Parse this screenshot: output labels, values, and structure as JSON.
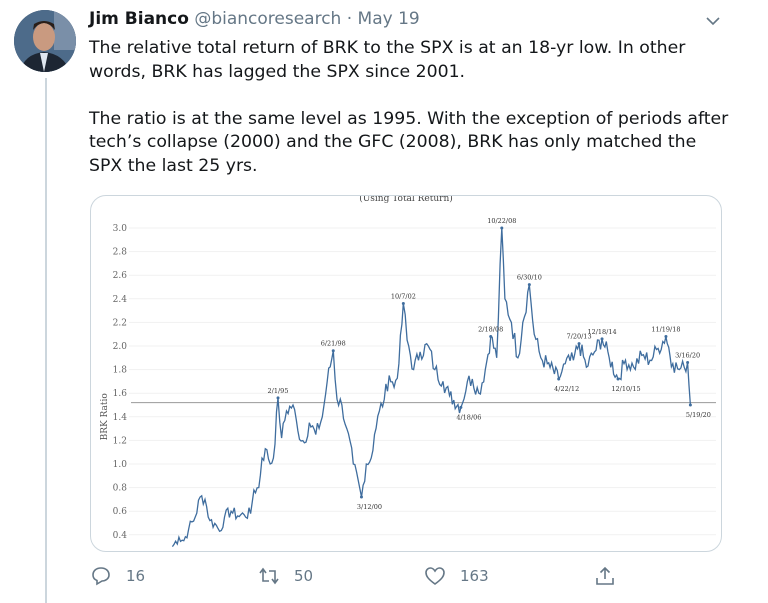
{
  "tweet": {
    "author_name": "Jim Bianco",
    "handle": "@biancoresearch",
    "separator": "·",
    "date": "May 19",
    "paragraphs": [
      "The relative total return of BRK to the SPX is at an 18-yr low. In other words, BRK has lagged the SPX since 2001.",
      "The ratio is at the same level as 1995. With the exception of periods after tech’s collapse (2000) and the GFC (2008), BRK has only matched the SPX the last 25 yrs."
    ],
    "actions": {
      "replies": "16",
      "retweets": "50",
      "likes": "163"
    }
  },
  "colors": {
    "line": "#3f6d9e",
    "accent": "#1da1f2",
    "muted": "#657786"
  },
  "chart_data": {
    "type": "line",
    "title": "(Using Total Return)",
    "ylabel": "BRK Ratio",
    "ylim": [
      0.3,
      3.1
    ],
    "yticks": [
      "0.4",
      "0.6",
      "0.8",
      "1.0",
      "1.2",
      "1.4",
      "1.6",
      "1.8",
      "2.0",
      "2.2",
      "2.4",
      "2.6",
      "2.8",
      "3.0"
    ],
    "grid": true,
    "reference_line": 1.52,
    "series": [
      {
        "points": [
          [
            1988.6,
            0.3
          ],
          [
            1989.0,
            0.38
          ],
          [
            1989.3,
            0.35
          ],
          [
            1989.6,
            0.45
          ],
          [
            1990.0,
            0.55
          ],
          [
            1990.3,
            0.72
          ],
          [
            1990.6,
            0.7
          ],
          [
            1990.9,
            0.52
          ],
          [
            1991.3,
            0.48
          ],
          [
            1991.5,
            0.43
          ],
          [
            1991.8,
            0.55
          ],
          [
            1992.2,
            0.6
          ],
          [
            1992.6,
            0.56
          ],
          [
            1993.0,
            0.57
          ],
          [
            1993.4,
            0.58
          ],
          [
            1993.6,
            0.78
          ],
          [
            1993.9,
            0.8
          ],
          [
            1994.1,
            1.05
          ],
          [
            1994.4,
            1.12
          ],
          [
            1994.6,
            1.0
          ],
          [
            1994.8,
            1.05
          ],
          [
            1995.08,
            1.56
          ],
          [
            1995.3,
            1.22
          ],
          [
            1995.6,
            1.45
          ],
          [
            1996.0,
            1.5
          ],
          [
            1996.3,
            1.28
          ],
          [
            1996.7,
            1.18
          ],
          [
            1997.0,
            1.35
          ],
          [
            1997.4,
            1.25
          ],
          [
            1997.8,
            1.4
          ],
          [
            1998.1,
            1.7
          ],
          [
            1998.47,
            1.96
          ],
          [
            1998.7,
            1.55
          ],
          [
            1999.0,
            1.5
          ],
          [
            1999.3,
            1.3
          ],
          [
            1999.7,
            1.0
          ],
          [
            2000.2,
            0.72
          ],
          [
            2000.5,
            1.0
          ],
          [
            2000.8,
            1.05
          ],
          [
            2001.0,
            1.25
          ],
          [
            2001.3,
            1.45
          ],
          [
            2001.6,
            1.55
          ],
          [
            2001.9,
            1.75
          ],
          [
            2002.2,
            1.65
          ],
          [
            2002.5,
            1.85
          ],
          [
            2002.77,
            2.36
          ],
          [
            2003.0,
            2.05
          ],
          [
            2003.4,
            1.8
          ],
          [
            2003.8,
            1.95
          ],
          [
            2004.3,
            2.0
          ],
          [
            2004.7,
            1.8
          ],
          [
            2005.2,
            1.7
          ],
          [
            2005.6,
            1.58
          ],
          [
            2006.3,
            1.48
          ],
          [
            2006.7,
            1.7
          ],
          [
            2007.0,
            1.72
          ],
          [
            2007.4,
            1.6
          ],
          [
            2007.8,
            1.8
          ],
          [
            2008.13,
            2.08
          ],
          [
            2008.5,
            1.9
          ],
          [
            2008.81,
            3.0
          ],
          [
            2009.0,
            2.4
          ],
          [
            2009.4,
            2.2
          ],
          [
            2009.8,
            1.9
          ],
          [
            2010.1,
            2.2
          ],
          [
            2010.5,
            2.52
          ],
          [
            2010.8,
            2.1
          ],
          [
            2011.2,
            1.9
          ],
          [
            2011.6,
            1.85
          ],
          [
            2012.3,
            1.72
          ],
          [
            2012.7,
            1.85
          ],
          [
            2013.2,
            1.88
          ],
          [
            2013.55,
            2.02
          ],
          [
            2014.0,
            1.82
          ],
          [
            2014.5,
            1.95
          ],
          [
            2014.96,
            2.06
          ],
          [
            2015.4,
            1.9
          ],
          [
            2015.94,
            1.72
          ],
          [
            2016.4,
            1.88
          ],
          [
            2016.9,
            1.82
          ],
          [
            2017.4,
            1.92
          ],
          [
            2017.9,
            1.88
          ],
          [
            2018.4,
            1.98
          ],
          [
            2018.88,
            2.08
          ],
          [
            2019.3,
            1.85
          ],
          [
            2019.7,
            1.8
          ],
          [
            2020.0,
            1.82
          ],
          [
            2020.21,
            1.86
          ],
          [
            2020.38,
            1.5
          ]
        ]
      }
    ],
    "annotations": [
      {
        "label": "2/1/95",
        "x": 1995.08,
        "y": 1.56,
        "pos": "above"
      },
      {
        "label": "6/21/98",
        "x": 1998.47,
        "y": 1.96,
        "pos": "above"
      },
      {
        "label": "3/12/00",
        "x": 2000.2,
        "y": 0.72,
        "pos": "below"
      },
      {
        "label": "10/7/02",
        "x": 2002.77,
        "y": 2.36,
        "pos": "above"
      },
      {
        "label": "4/18/06",
        "x": 2006.3,
        "y": 1.48,
        "pos": "below"
      },
      {
        "label": "2/18/08",
        "x": 2008.13,
        "y": 2.08,
        "pos": "above"
      },
      {
        "label": "10/22/08",
        "x": 2008.81,
        "y": 3.0,
        "pos": "above"
      },
      {
        "label": "6/30/10",
        "x": 2010.5,
        "y": 2.52,
        "pos": "above"
      },
      {
        "label": "4/22/12",
        "x": 2012.3,
        "y": 1.72,
        "pos": "below"
      },
      {
        "label": "7/20/13",
        "x": 2013.55,
        "y": 2.02,
        "pos": "above"
      },
      {
        "label": "12/18/14",
        "x": 2014.96,
        "y": 2.06,
        "pos": "above"
      },
      {
        "label": "12/10/15",
        "x": 2015.94,
        "y": 1.72,
        "pos": "below"
      },
      {
        "label": "11/19/18",
        "x": 2018.88,
        "y": 2.08,
        "pos": "above"
      },
      {
        "label": "3/16/20",
        "x": 2020.21,
        "y": 1.86,
        "pos": "above"
      },
      {
        "label": "5/19/20",
        "x": 2020.38,
        "y": 1.5,
        "pos": "below"
      }
    ]
  }
}
